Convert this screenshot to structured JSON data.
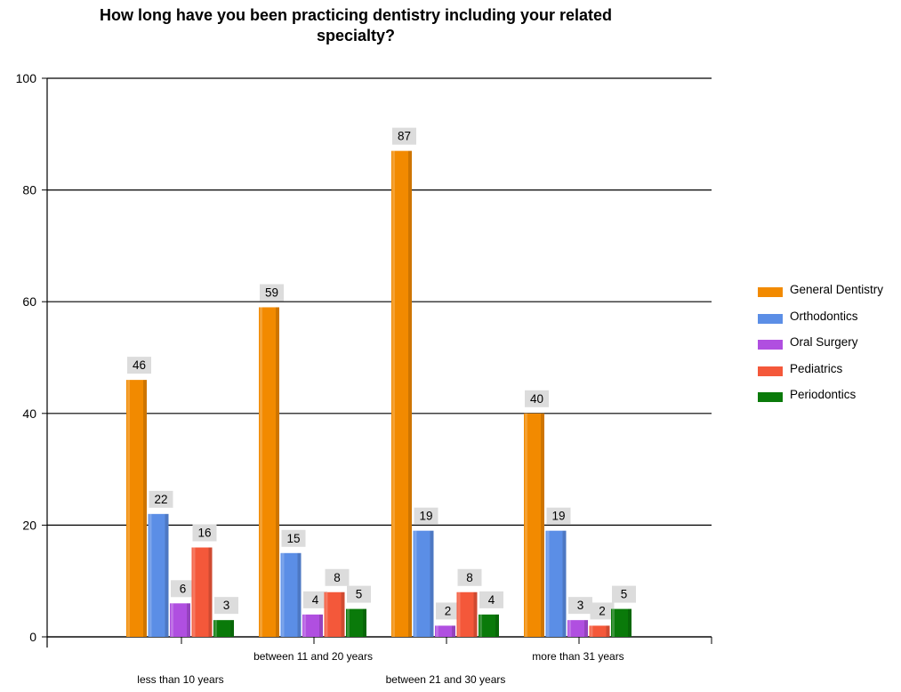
{
  "chart_data": {
    "type": "bar",
    "title": "How long have you been practicing dentistry including your related specialty?",
    "title_lines": [
      "How long have you been practicing dentistry including your related",
      "specialty?"
    ],
    "categories": [
      "less than 10 years",
      "between 11 and 20 years",
      "between 21 and 30 years",
      "more than 31 years"
    ],
    "series": [
      {
        "name": "General Dentistry",
        "color": "#f28a00",
        "values": [
          46,
          59,
          87,
          40
        ]
      },
      {
        "name": "Orthodontics",
        "color": "#5b8ee6",
        "values": [
          22,
          15,
          19,
          19
        ]
      },
      {
        "name": "Oral Surgery",
        "color": "#b04fe0",
        "values": [
          6,
          4,
          2,
          3
        ]
      },
      {
        "name": "Pediatrics",
        "color": "#f4583a",
        "values": [
          16,
          8,
          8,
          2
        ]
      },
      {
        "name": "Periodontics",
        "color": "#0a7a0a",
        "values": [
          3,
          5,
          4,
          5
        ]
      }
    ],
    "ylim": [
      0,
      100
    ],
    "yticks": [
      0,
      20,
      40,
      60,
      80,
      100
    ],
    "xlabel": "",
    "ylabel": "",
    "grid": true,
    "legend": "right",
    "data_labels": true
  }
}
